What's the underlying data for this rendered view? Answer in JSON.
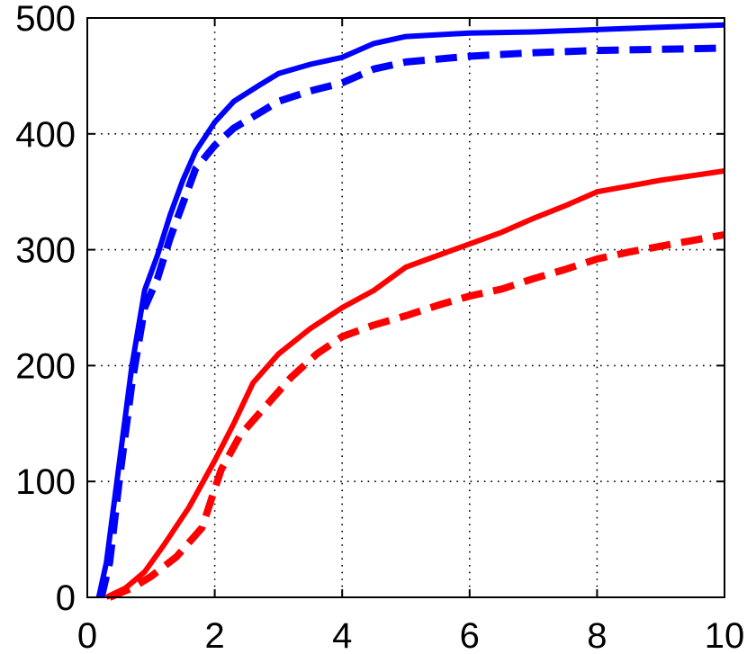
{
  "chart_data": {
    "type": "line",
    "title": "",
    "xlabel": "",
    "ylabel": "",
    "xlim": [
      0,
      10
    ],
    "ylim": [
      0,
      500
    ],
    "xticks": [
      0,
      2,
      4,
      6,
      8,
      10
    ],
    "yticks": [
      0,
      100,
      200,
      300,
      400,
      500
    ],
    "xtick_labels": [
      "0",
      "2",
      "4",
      "6",
      "8",
      "10"
    ],
    "ytick_labels": [
      "0",
      "100",
      "200",
      "300",
      "400",
      "500"
    ],
    "grid": true,
    "series": [
      {
        "color": "#0000ff",
        "style": "solid",
        "points": [
          [
            0.18,
            0
          ],
          [
            0.3,
            30
          ],
          [
            0.5,
            115
          ],
          [
            0.7,
            200
          ],
          [
            0.9,
            265
          ],
          [
            1.1,
            295
          ],
          [
            1.3,
            330
          ],
          [
            1.5,
            360
          ],
          [
            1.7,
            385
          ],
          [
            2.0,
            410
          ],
          [
            2.3,
            428
          ],
          [
            2.7,
            442
          ],
          [
            3.0,
            452
          ],
          [
            3.5,
            460
          ],
          [
            4.0,
            466
          ],
          [
            4.5,
            478
          ],
          [
            5.0,
            484
          ],
          [
            6.0,
            487
          ],
          [
            7.0,
            488
          ],
          [
            8.0,
            490
          ],
          [
            9.0,
            492
          ],
          [
            10.0,
            494
          ]
        ]
      },
      {
        "color": "#0000ff",
        "style": "dashed",
        "points": [
          [
            0.22,
            0
          ],
          [
            0.35,
            30
          ],
          [
            0.5,
            100
          ],
          [
            0.7,
            185
          ],
          [
            0.9,
            250
          ],
          [
            1.1,
            275
          ],
          [
            1.3,
            310
          ],
          [
            1.5,
            340
          ],
          [
            1.7,
            370
          ],
          [
            2.0,
            390
          ],
          [
            2.3,
            405
          ],
          [
            2.7,
            418
          ],
          [
            3.0,
            428
          ],
          [
            3.5,
            437
          ],
          [
            4.0,
            444
          ],
          [
            4.5,
            456
          ],
          [
            5.0,
            462
          ],
          [
            6.0,
            467
          ],
          [
            7.0,
            470
          ],
          [
            8.0,
            472
          ],
          [
            9.0,
            473
          ],
          [
            10.0,
            474
          ]
        ]
      },
      {
        "color": "#ff0000",
        "style": "solid",
        "points": [
          [
            0.3,
            0
          ],
          [
            0.6,
            8
          ],
          [
            0.9,
            22
          ],
          [
            1.2,
            45
          ],
          [
            1.6,
            78
          ],
          [
            2.0,
            118
          ],
          [
            2.3,
            150
          ],
          [
            2.6,
            185
          ],
          [
            3.0,
            210
          ],
          [
            3.5,
            232
          ],
          [
            4.0,
            250
          ],
          [
            4.5,
            265
          ],
          [
            5.0,
            285
          ],
          [
            5.5,
            295
          ],
          [
            6.0,
            305
          ],
          [
            6.5,
            315
          ],
          [
            7.0,
            327
          ],
          [
            7.5,
            338
          ],
          [
            8.0,
            350
          ],
          [
            8.5,
            355
          ],
          [
            9.0,
            360
          ],
          [
            9.5,
            364
          ],
          [
            10.0,
            368
          ]
        ]
      },
      {
        "color": "#ff0000",
        "style": "dashed",
        "points": [
          [
            0.35,
            0
          ],
          [
            0.7,
            8
          ],
          [
            1.0,
            18
          ],
          [
            1.4,
            35
          ],
          [
            1.8,
            60
          ],
          [
            2.1,
            110
          ],
          [
            2.4,
            140
          ],
          [
            2.8,
            165
          ],
          [
            3.2,
            190
          ],
          [
            3.6,
            210
          ],
          [
            4.0,
            225
          ],
          [
            4.5,
            235
          ],
          [
            5.0,
            243
          ],
          [
            5.5,
            252
          ],
          [
            6.0,
            260
          ],
          [
            6.5,
            266
          ],
          [
            7.0,
            275
          ],
          [
            7.5,
            283
          ],
          [
            8.0,
            292
          ],
          [
            8.5,
            298
          ],
          [
            9.0,
            303
          ],
          [
            9.5,
            308
          ],
          [
            10.0,
            313
          ]
        ]
      }
    ]
  }
}
